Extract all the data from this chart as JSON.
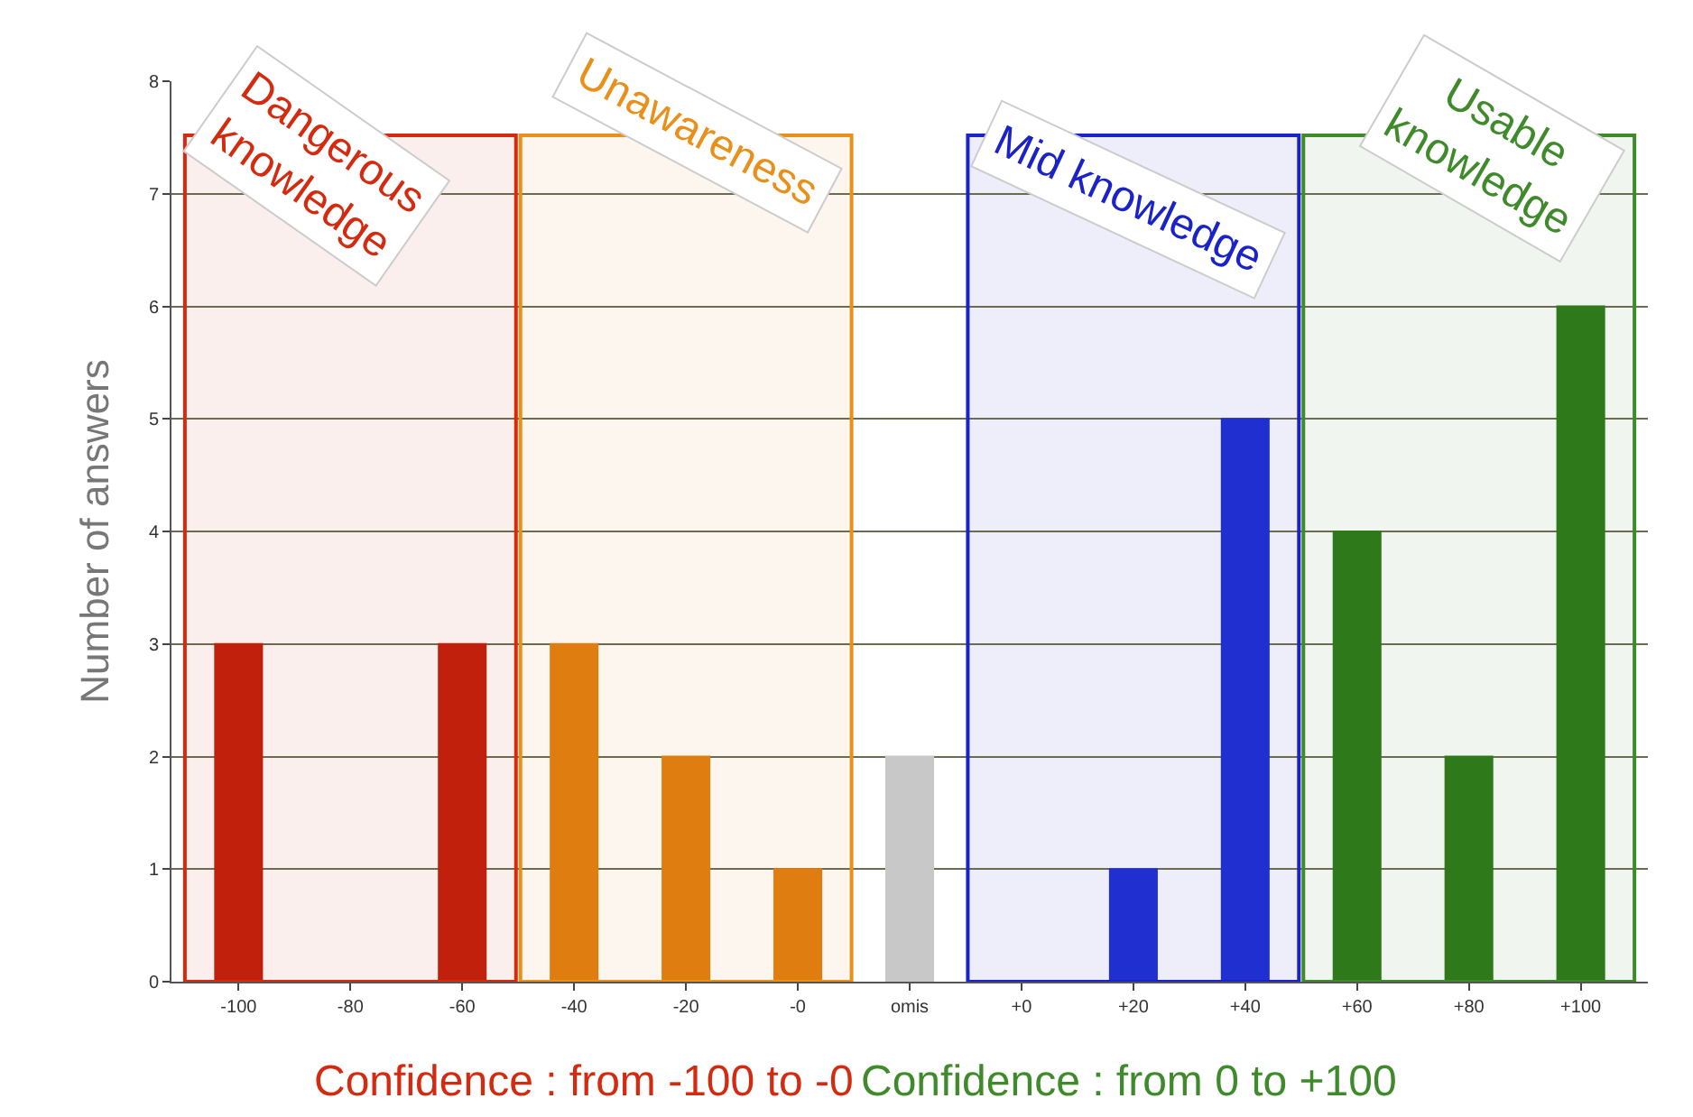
{
  "chart_data": {
    "type": "bar",
    "ylabel": "Number of answers",
    "categories": [
      "-100",
      "-80",
      "-60",
      "-40",
      "-20",
      "-0",
      "omis",
      "+0",
      "+20",
      "+40",
      "+60",
      "+80",
      "+100"
    ],
    "values": [
      3,
      0,
      3,
      3,
      2,
      1,
      2,
      0,
      1,
      5,
      4,
      2,
      6
    ],
    "colors": [
      "#c0200c",
      "#c0200c",
      "#c0200c",
      "#e07d10",
      "#e07d10",
      "#e07d10",
      "#c8c8c8",
      "#1f2fd0",
      "#1f2fd0",
      "#1f2fd0",
      "#2e7a1a",
      "#2e7a1a",
      "#2e7a1a"
    ],
    "ylim": [
      0,
      8
    ],
    "yticks": [
      0,
      1,
      2,
      3,
      4,
      5,
      6,
      7,
      8
    ],
    "grid": "y",
    "legend": false,
    "bands": [
      {
        "axis": "x",
        "from": "-100",
        "to": "-60",
        "label": "Dangerous\nknowledge",
        "color": "#d42a10"
      },
      {
        "axis": "x",
        "from": "-40",
        "to": "-0",
        "label": "Unawareness",
        "color": "#e8901a"
      },
      {
        "axis": "x",
        "from": "+0",
        "to": "+40",
        "label": "Mid knowledge",
        "color": "#1a22c8"
      },
      {
        "axis": "x",
        "from": "+60",
        "to": "+100",
        "label": "Usable\nknowledge",
        "color": "#3f8a2a"
      }
    ],
    "annotations": [
      "Confidence : from -100 to -0",
      "Confidence : from 0 to +100"
    ]
  }
}
